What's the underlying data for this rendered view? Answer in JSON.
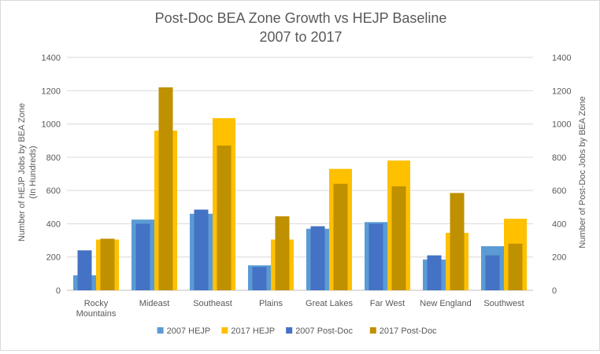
{
  "chart_data": {
    "type": "bar",
    "title": [
      "Post-Doc BEA Zone Growth vs HEJP Baseline",
      "2007 to 2017"
    ],
    "ylabel_left": [
      "Number of HEJP Jobs by BEA Zone",
      "(In Hundreds)"
    ],
    "ylabel_right": "Number of Post-Doc Jobs by BEA Zone",
    "categories": [
      [
        "Rocky",
        "Mountains"
      ],
      [
        "Mideast"
      ],
      [
        "Southeast"
      ],
      [
        "Plains"
      ],
      [
        "Great Lakes"
      ],
      [
        "Far West"
      ],
      [
        "New England"
      ],
      [
        "Southwest"
      ]
    ],
    "ylim_left": [
      0,
      1400
    ],
    "ylim_right": [
      0,
      1400
    ],
    "yticks": [
      0,
      200,
      400,
      600,
      800,
      1000,
      1200,
      1400
    ],
    "grid": true,
    "legend_position": "bottom",
    "series": [
      {
        "name": "2007 HEJP",
        "axis": "left",
        "role": "wide-back",
        "color": "#5B9BD5",
        "values": [
          90,
          425,
          460,
          150,
          370,
          410,
          185,
          265
        ]
      },
      {
        "name": "2017 HEJP",
        "axis": "left",
        "role": "wide-back",
        "color": "#FFC000",
        "values": [
          305,
          960,
          1035,
          305,
          730,
          780,
          345,
          430
        ]
      },
      {
        "name": "2007 Post-Doc",
        "axis": "right",
        "role": "narrow-front",
        "color": "#4472C4",
        "values": [
          240,
          400,
          485,
          140,
          385,
          400,
          210,
          210
        ]
      },
      {
        "name": "2017 Post-Doc",
        "axis": "right",
        "role": "narrow-front",
        "color": "#BF9000",
        "values": [
          310,
          1220,
          870,
          445,
          640,
          625,
          585,
          280
        ]
      }
    ]
  }
}
